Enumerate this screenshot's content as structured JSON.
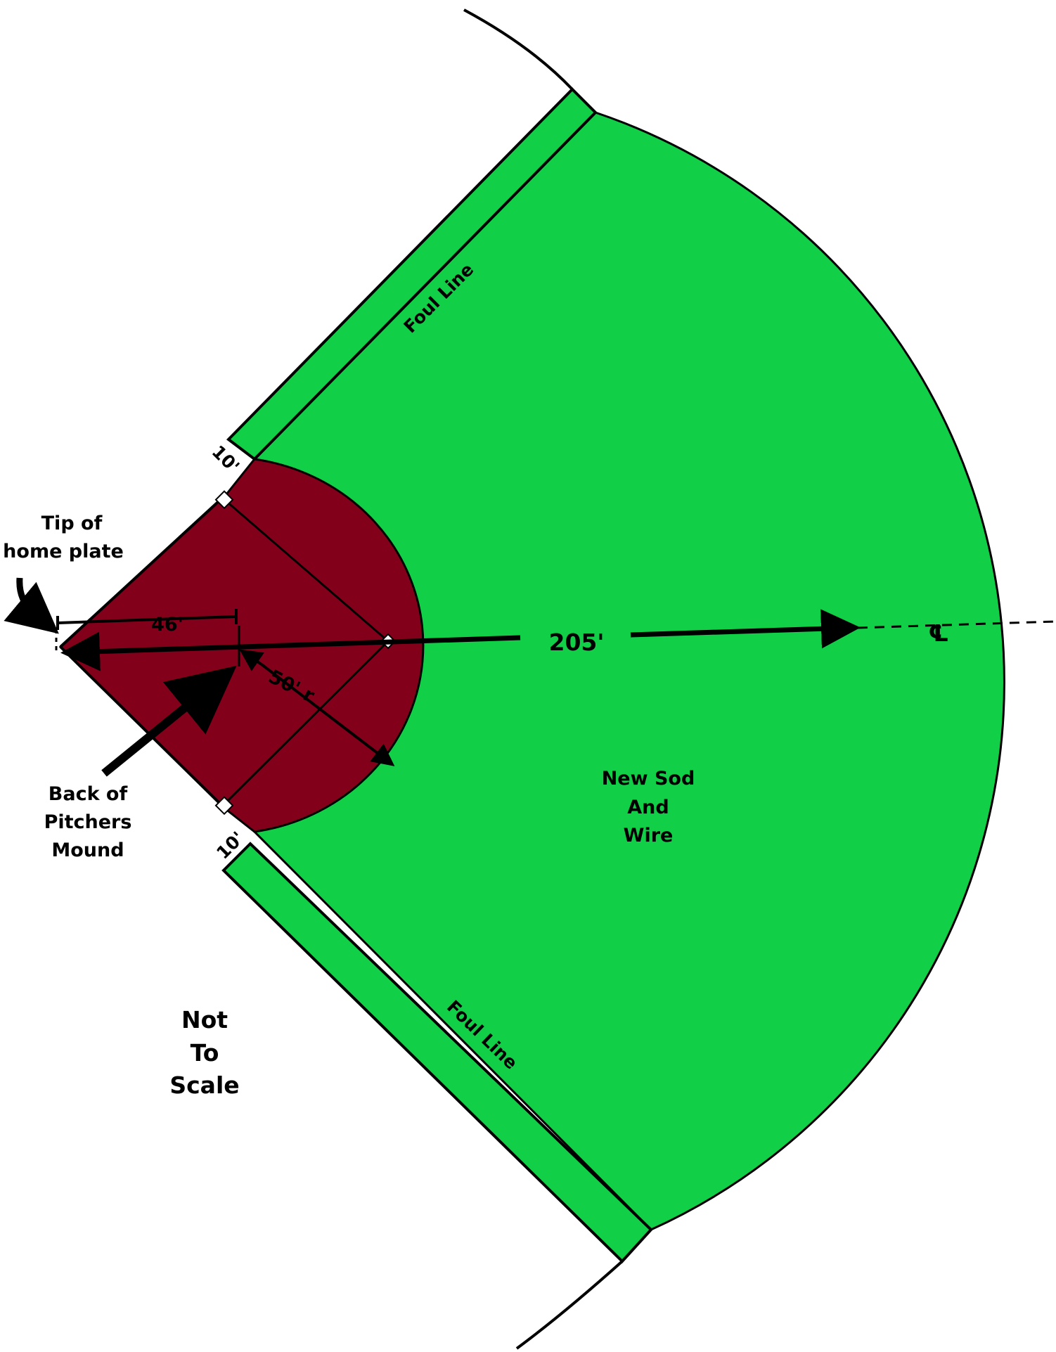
{
  "colors": {
    "grass": "#12cf48",
    "infield": "#82001a",
    "line": "#000000",
    "background": "#ffffff"
  },
  "labels": {
    "tip_line1": "Tip of",
    "tip_line2": "home plate",
    "dim_46": "46'",
    "dim_50": "50' r",
    "dim_205": "205'",
    "centerline_symbol": "℄",
    "foul_line_top": "Foul Line",
    "foul_line_bottom": "Foul Line",
    "ten_top": "10'",
    "ten_bottom": "10'",
    "back_line1": "Back of",
    "back_line2": "Pitchers",
    "back_line3": "Mound",
    "sod_line1": "New Sod",
    "sod_line2": "And",
    "sod_line3": "Wire",
    "note_line1": "Not",
    "note_line2": "To",
    "note_line3": "Scale"
  }
}
